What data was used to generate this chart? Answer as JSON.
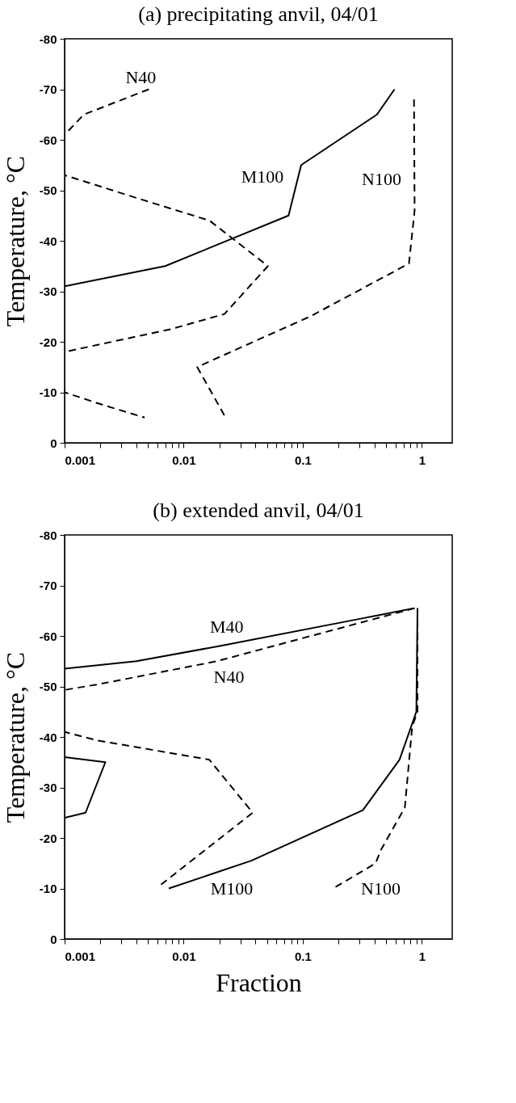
{
  "chart_data": [
    {
      "type": "line",
      "title": "(a) precipitating anvil, 04/01",
      "ylabel": "Temperature, °C",
      "log": "x",
      "grid": false,
      "xlim": [
        0.001,
        1.8
      ],
      "ylim": [
        0,
        -80
      ],
      "xticks": [
        0.001,
        {
          "value": 0.002,
          "label": null
        },
        {
          "value": 0.003,
          "label": null
        },
        {
          "value": 0.004,
          "label": null
        },
        {
          "value": 0.005,
          "label": null
        },
        {
          "value": 0.006,
          "label": null
        },
        {
          "value": 0.007,
          "label": null
        },
        {
          "value": 0.008,
          "label": null
        },
        {
          "value": 0.009,
          "label": null
        },
        0.01,
        {
          "value": 0.02,
          "label": null
        },
        {
          "value": 0.03,
          "label": null
        },
        {
          "value": 0.04,
          "label": null
        },
        {
          "value": 0.05,
          "label": null
        },
        {
          "value": 0.06,
          "label": null
        },
        {
          "value": 0.07,
          "label": null
        },
        {
          "value": 0.08,
          "label": null
        },
        {
          "value": 0.09,
          "label": null
        },
        0.1,
        {
          "value": 0.2,
          "label": null
        },
        {
          "value": 0.3,
          "label": null
        },
        {
          "value": 0.4,
          "label": null
        },
        {
          "value": 0.5,
          "label": null
        },
        {
          "value": 0.6,
          "label": null
        },
        {
          "value": 0.7,
          "label": null
        },
        {
          "value": 0.8,
          "label": null
        },
        {
          "value": 0.9,
          "label": null
        },
        1
      ],
      "yticks": [
        -80,
        -70,
        -60,
        -50,
        -40,
        -30,
        -20,
        -10,
        0
      ],
      "series": [
        {
          "name": "N40",
          "color": "#000000",
          "line_style": "dashed",
          "x": [
            0.0051,
            0.00145,
            0.001,
            0.001,
            0.004,
            0.0165,
            0.051,
            0.022,
            0.0078,
            0.001,
            0.001,
            0.0021,
            0.0047
          ],
          "values": [
            -70,
            -65,
            -61,
            -53,
            -48.5,
            -44,
            -35,
            -25.5,
            -22.5,
            -18,
            -10,
            -7.5,
            -5
          ]
        },
        {
          "name": "M100",
          "color": "#000000",
          "line_style": "solid",
          "x": [
            0.001,
            0.007,
            0.076,
            0.097,
            0.42,
            0.59
          ],
          "values": [
            -31,
            -35,
            -45,
            -55,
            -65,
            -70
          ]
        },
        {
          "name": "N100",
          "color": "#000000",
          "line_style": "dashed",
          "x": [
            0.86,
            0.87,
            0.78,
            0.115,
            0.02,
            0.013,
            0.0225
          ],
          "values": [
            -68,
            -46,
            -35.5,
            -25,
            -17,
            -15,
            -5
          ]
        }
      ]
    },
    {
      "type": "line",
      "title": "(b) extended anvil, 04/01",
      "xlabel": "Fraction",
      "ylabel": "Temperature, °C",
      "log": "x",
      "grid": false,
      "xlim": [
        0.001,
        1.8
      ],
      "ylim": [
        0,
        -80
      ],
      "xticks": [
        0.001,
        {
          "value": 0.002,
          "label": null
        },
        {
          "value": 0.003,
          "label": null
        },
        {
          "value": 0.004,
          "label": null
        },
        {
          "value": 0.005,
          "label": null
        },
        {
          "value": 0.006,
          "label": null
        },
        {
          "value": 0.007,
          "label": null
        },
        {
          "value": 0.008,
          "label": null
        },
        {
          "value": 0.009,
          "label": null
        },
        0.01,
        {
          "value": 0.02,
          "label": null
        },
        {
          "value": 0.03,
          "label": null
        },
        {
          "value": 0.04,
          "label": null
        },
        {
          "value": 0.05,
          "label": null
        },
        {
          "value": 0.06,
          "label": null
        },
        {
          "value": 0.07,
          "label": null
        },
        {
          "value": 0.08,
          "label": null
        },
        {
          "value": 0.09,
          "label": null
        },
        0.1,
        {
          "value": 0.2,
          "label": null
        },
        {
          "value": 0.3,
          "label": null
        },
        {
          "value": 0.4,
          "label": null
        },
        {
          "value": 0.5,
          "label": null
        },
        {
          "value": 0.6,
          "label": null
        },
        {
          "value": 0.7,
          "label": null
        },
        {
          "value": 0.8,
          "label": null
        },
        {
          "value": 0.9,
          "label": null
        },
        1
      ],
      "yticks": [
        -80,
        -70,
        -60,
        -50,
        -40,
        -30,
        -20,
        -10,
        0
      ],
      "series": [
        {
          "name": "M40",
          "color": "#000000",
          "line_style": "solid",
          "x": [
            0.87,
            0.32,
            0.02,
            0.004,
            0.001,
            0.001,
            0.0022,
            0.0015,
            0.001
          ],
          "values": [
            -65.5,
            -63.5,
            -58,
            -55,
            -53.5,
            -36,
            -35,
            -25,
            -24
          ]
        },
        {
          "name": "N40",
          "color": "#000000",
          "line_style": "dashed",
          "x": [
            0.87,
            0.019,
            0.002,
            0.001,
            0.001,
            0.0019,
            0.0164,
            0.038,
            0.0061
          ],
          "values": [
            -65.5,
            -55,
            -50.5,
            -49.3,
            -41,
            -39.3,
            -35.5,
            -25,
            -10.3
          ]
        },
        {
          "name": "M100",
          "color": "#000000",
          "line_style": "solid",
          "x": [
            0.0075,
            0.037,
            0.32,
            0.65,
            0.9,
            0.92
          ],
          "values": [
            -10,
            -15.5,
            -25.5,
            -35.5,
            -45,
            -65.5
          ]
        },
        {
          "name": "N100",
          "color": "#000000",
          "line_style": "dashed",
          "x": [
            0.92,
            0.92,
            0.83,
            0.72,
            0.45,
            0.41,
            0.18
          ],
          "values": [
            -65.5,
            -45,
            -42,
            -26,
            -17.5,
            -15,
            -10
          ]
        }
      ]
    }
  ]
}
